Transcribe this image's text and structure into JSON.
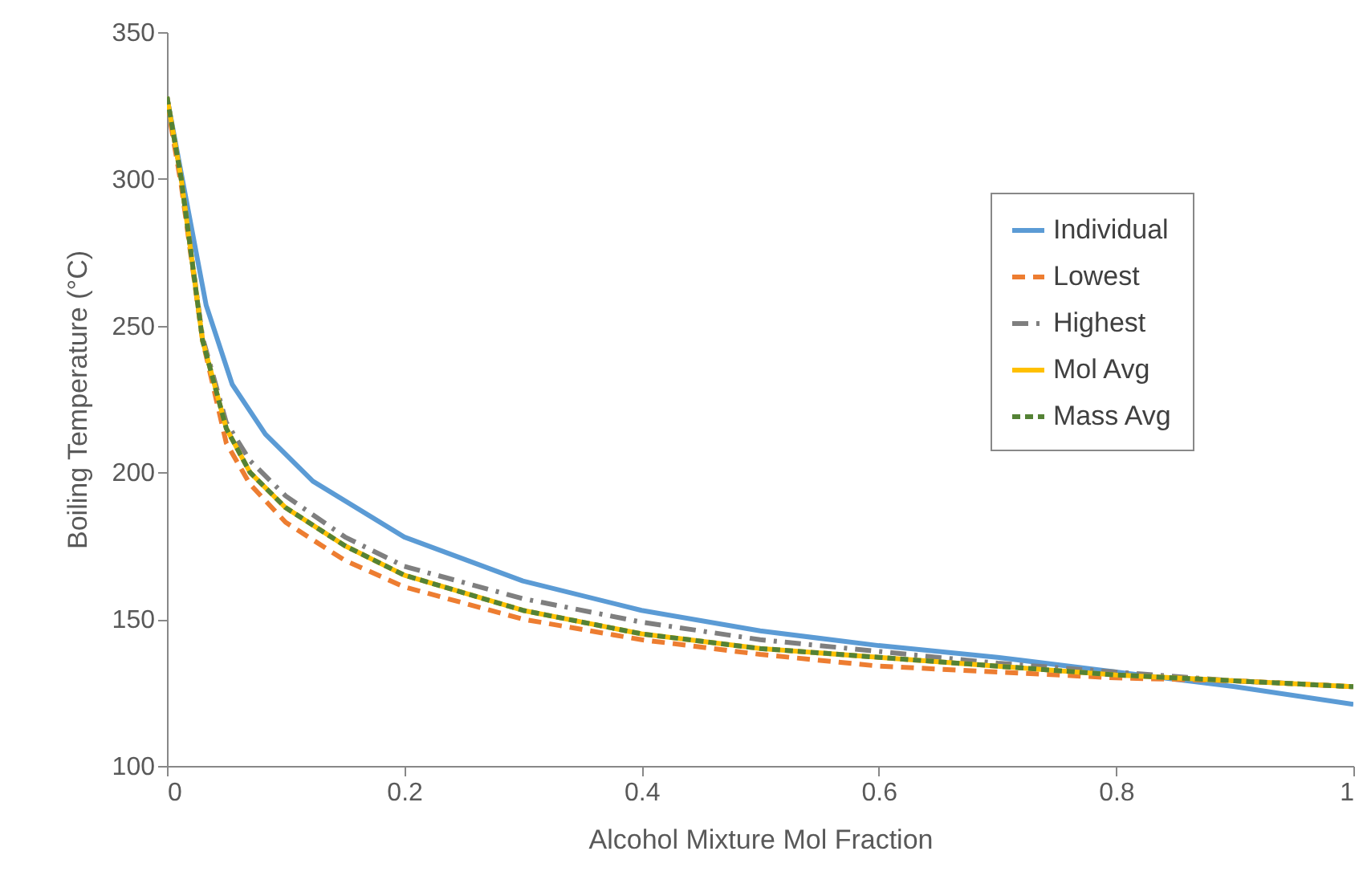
{
  "chart_data": {
    "type": "line",
    "xlabel": "Alcohol Mixture Mol Fraction",
    "ylabel": "Boiling Temperature (°C)",
    "xlim": [
      0,
      1
    ],
    "xticks": [
      0,
      0.2,
      0.4,
      0.6,
      0.8,
      1
    ],
    "ylim": [
      100,
      350
    ],
    "yticks": [
      100,
      150,
      200,
      250,
      300,
      350
    ],
    "grid": false,
    "legend": "top right",
    "series": [
      {
        "name": "Individual",
        "color": "#5b9bd5",
        "line_style": "solid",
        "x": [
          0,
          0.012,
          0.033,
          0.055,
          0.083,
          0.123,
          0.2,
          0.3,
          0.4,
          0.5,
          0.6,
          0.7,
          0.8,
          0.9,
          1
        ],
        "values": [
          328,
          302,
          257,
          230,
          213,
          197,
          178,
          163,
          153,
          146,
          141,
          137,
          132,
          127,
          121
        ]
      },
      {
        "name": "Lowest",
        "color": "#ed7d31",
        "line_style": "dashed",
        "x": [
          0,
          0.012,
          0.03,
          0.05,
          0.07,
          0.1,
          0.15,
          0.2,
          0.3,
          0.4,
          0.5,
          0.6,
          0.7,
          0.8,
          0.9,
          1
        ],
        "values": [
          326,
          298,
          245,
          210,
          196,
          183,
          170,
          161,
          150,
          143,
          138,
          134,
          132,
          130,
          129,
          127
        ]
      },
      {
        "name": "Highest",
        "color": "#7f7f7f",
        "line_style": "dashdot",
        "x": [
          0,
          0.012,
          0.03,
          0.05,
          0.07,
          0.1,
          0.15,
          0.2,
          0.3,
          0.4,
          0.5,
          0.6,
          0.7,
          0.8,
          0.9,
          1
        ],
        "values": [
          328,
          300,
          246,
          217,
          204,
          192,
          178,
          168,
          157,
          149,
          143,
          139,
          135,
          132,
          129,
          127
        ]
      },
      {
        "name": "Mol Avg",
        "color": "#ffc000",
        "line_style": "solid",
        "x": [
          0,
          0.012,
          0.03,
          0.05,
          0.07,
          0.1,
          0.15,
          0.2,
          0.3,
          0.4,
          0.5,
          0.6,
          0.7,
          0.8,
          0.9,
          1
        ],
        "values": [
          328,
          300,
          245,
          215,
          200,
          188,
          175,
          165,
          153,
          145,
          140,
          137,
          134,
          131,
          129,
          127
        ]
      },
      {
        "name": "Mass Avg",
        "color": "#548235",
        "line_style": "dotted",
        "x": [
          0,
          0.012,
          0.03,
          0.05,
          0.07,
          0.1,
          0.15,
          0.2,
          0.3,
          0.4,
          0.5,
          0.6,
          0.7,
          0.8,
          0.9,
          1
        ],
        "values": [
          328,
          300,
          245,
          215,
          200,
          188,
          175,
          165,
          153,
          145,
          140,
          137,
          134,
          131,
          129,
          127
        ]
      }
    ]
  }
}
